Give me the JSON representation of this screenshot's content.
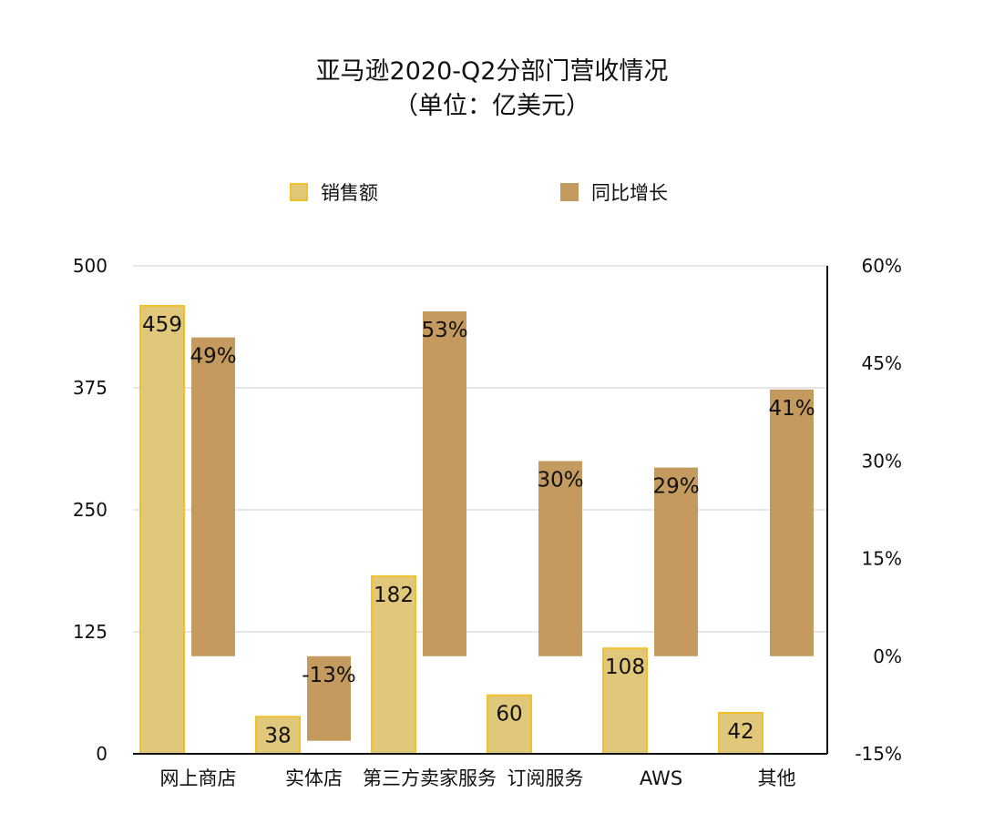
{
  "chart_data": {
    "type": "bar",
    "title": "亚马逊2020-Q2分部门营收情况",
    "subtitle": "（单位：亿美元）",
    "categories": [
      "网上商店",
      "实体店",
      "第三方卖家服务",
      "订阅服务",
      "AWS",
      "其他"
    ],
    "series": [
      {
        "name": "销售额",
        "axis": "left",
        "color": "#e0c77a",
        "border": "#f0c12a",
        "values": [
          459,
          38,
          182,
          60,
          108,
          42
        ],
        "labels": [
          "459",
          "38",
          "182",
          "60",
          "108",
          "42"
        ]
      },
      {
        "name": "同比增长",
        "axis": "right",
        "color": "#c59a5e",
        "values": [
          49,
          -13,
          53,
          30,
          29,
          41
        ],
        "labels": [
          "49%",
          "-13%",
          "53%",
          "30%",
          "29%",
          "41%"
        ]
      }
    ],
    "y_left": {
      "ylim": [
        0,
        500
      ],
      "ticks": [
        "0",
        "125",
        "250",
        "375",
        "500"
      ]
    },
    "y_right": {
      "ylim": [
        -15,
        60
      ],
      "ticks": [
        "-15%",
        "0%",
        "15%",
        "30%",
        "45%",
        "60%"
      ]
    },
    "grid": true,
    "legend": "top-center"
  }
}
